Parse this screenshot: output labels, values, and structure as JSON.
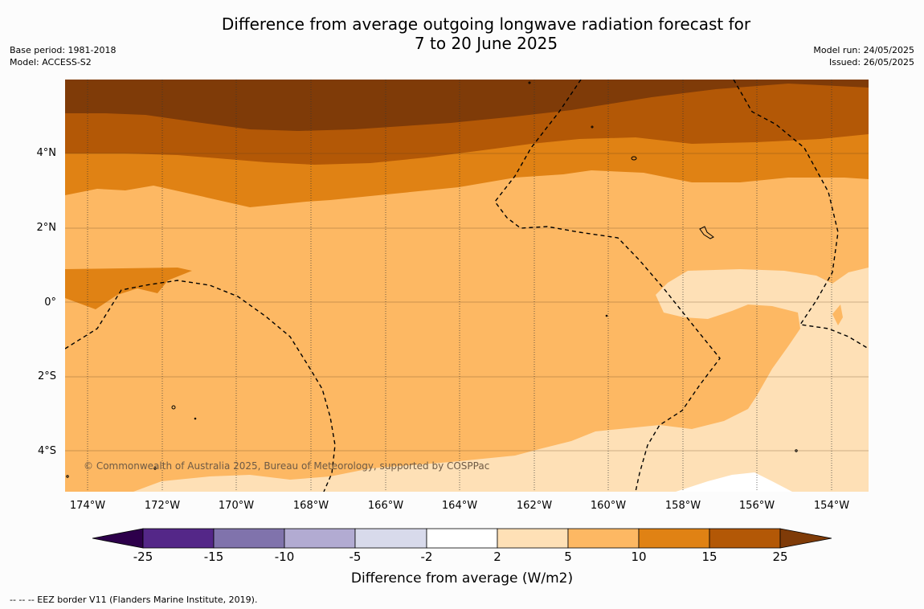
{
  "title": {
    "line1": "Difference from average outgoing longwave radiation forecast for",
    "line2": "7 to 20 June 2025"
  },
  "meta_left": {
    "base_period": "Base period: 1981-2018",
    "model": "Model: ACCESS-S2"
  },
  "meta_right": {
    "model_run": "Model run: 24/05/2025",
    "issued": "Issued: 26/05/2025"
  },
  "map": {
    "lat_labels": [
      "4°N",
      "2°N",
      "0°",
      "2°S",
      "4°S"
    ],
    "lon_labels": [
      "174°W",
      "172°W",
      "170°W",
      "168°W",
      "166°W",
      "164°W",
      "162°W",
      "160°W",
      "158°W",
      "156°W",
      "154°W"
    ],
    "copyright": "© Commonwealth of Australia 2025, Bureau of Meteorology, supported by COSPPac",
    "colors": {
      "band_25_plus": "#7f3b08",
      "band_15_25": "#b35806",
      "band_10_15": "#e08214",
      "band_5_10": "#fdb863",
      "band_2_5": "#fee0b6",
      "band_m2_2": "#ffffff",
      "eez_line": "#000000"
    }
  },
  "colorbar": {
    "ticks": [
      "-25",
      "-15",
      "-10",
      "-5",
      "-2",
      "2",
      "5",
      "10",
      "15",
      "25"
    ],
    "colors": [
      "#2d004b",
      "#542788",
      "#8073ac",
      "#b2abd2",
      "#d8daeb",
      "#ffffff",
      "#fee0b6",
      "#fdb863",
      "#e08214",
      "#b35806",
      "#7f3b08"
    ],
    "label": "Difference from average (W/m2)"
  },
  "eez_note": "--  --  -- EEZ border V11 (Flanders Marine Institute, 2019)."
}
